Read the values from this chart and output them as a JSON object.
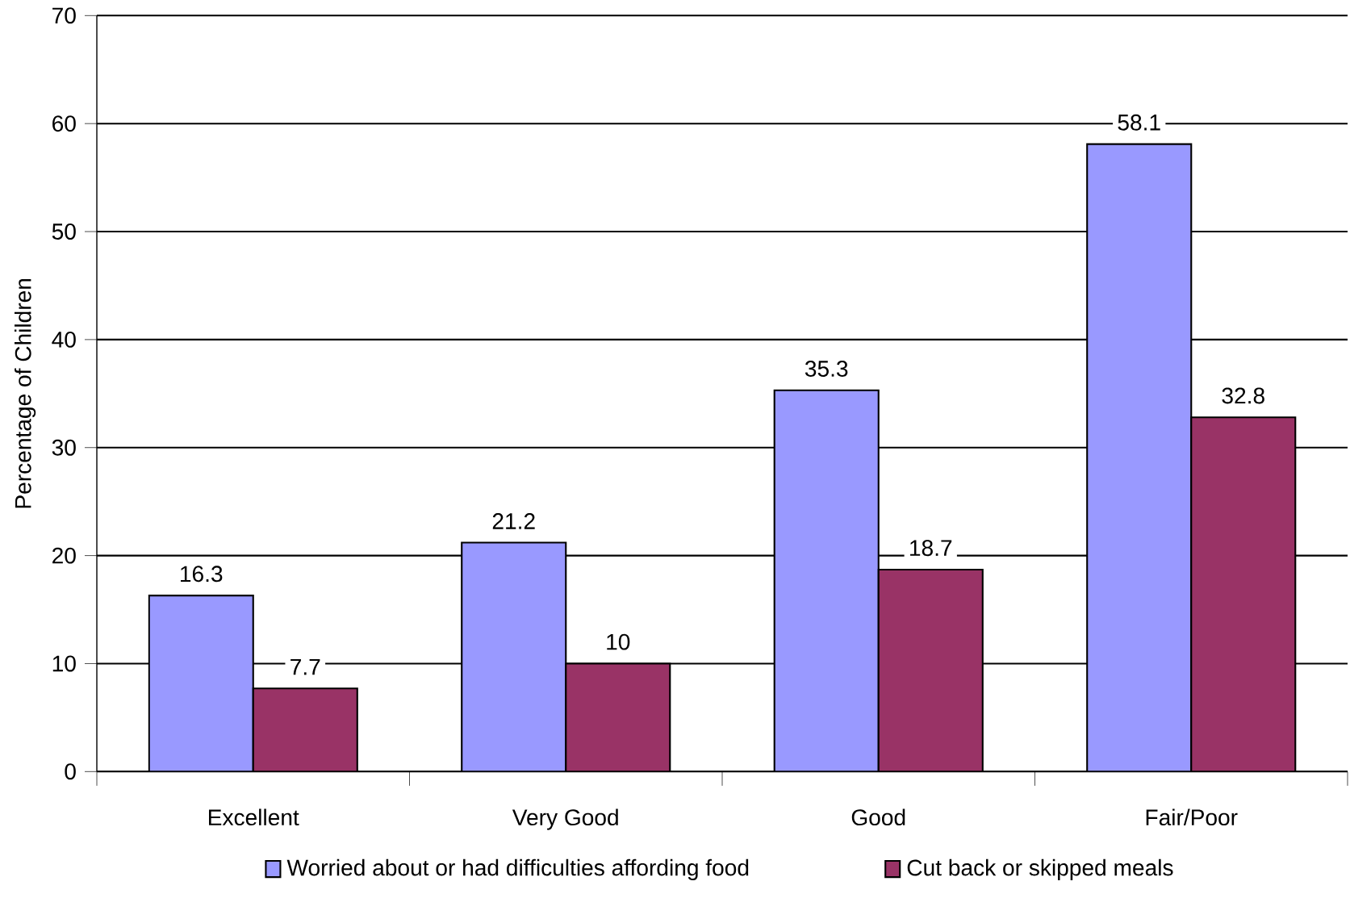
{
  "chart_data": {
    "type": "bar",
    "ylabel": "Percentage of Children",
    "categories": [
      "Excellent",
      "Very Good",
      "Good",
      "Fair/Poor"
    ],
    "series": [
      {
        "name": "Worried about or had difficulties affording food",
        "color": "#9999ff",
        "values": [
          16.3,
          21.2,
          35.3,
          58.1
        ]
      },
      {
        "name": "Cut back or skipped meals",
        "color": "#993366",
        "values": [
          7.7,
          10,
          18.7,
          32.8
        ]
      }
    ],
    "ylim": [
      0,
      70
    ],
    "yticks": [
      0,
      10,
      20,
      30,
      40,
      50,
      60,
      70
    ],
    "grid": "y",
    "legend": "bottom",
    "data_labels": true
  }
}
